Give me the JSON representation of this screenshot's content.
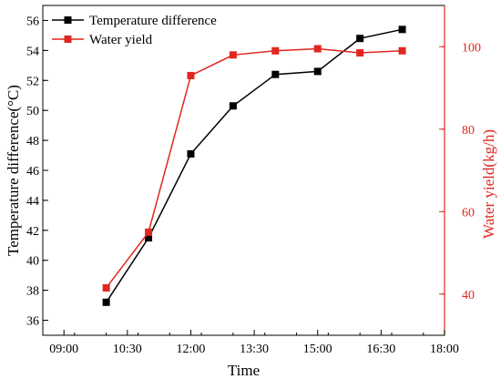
{
  "chart_data": {
    "type": "line",
    "xlabel": "Time",
    "x_tick_labels": [
      "09:00",
      "10:30",
      "12:00",
      "13:30",
      "15:00",
      "16:30",
      "18:00"
    ],
    "x_ticks_minutes": [
      540,
      630,
      720,
      810,
      900,
      990,
      1080
    ],
    "xlim_minutes": [
      510,
      1080
    ],
    "y_left": {
      "label": "Temperature difference(°C)",
      "lim": [
        35,
        57
      ],
      "ticks": [
        36,
        38,
        40,
        42,
        44,
        46,
        48,
        50,
        52,
        54,
        56
      ],
      "color": "#000000"
    },
    "y_right": {
      "label": "Water yield(kg/h)",
      "lim": [
        30,
        110
      ],
      "ticks": [
        40,
        60,
        80,
        100
      ],
      "color": "#e0271f"
    },
    "series": [
      {
        "name": "Temperature difference",
        "axis": "left",
        "color": "#000000",
        "marker": "square",
        "x_minutes": [
          600,
          660,
          720,
          780,
          840,
          900,
          960,
          1020
        ],
        "values": [
          37.2,
          41.5,
          47.1,
          50.3,
          52.4,
          52.6,
          54.8,
          55.4
        ]
      },
      {
        "name": "Water yield",
        "axis": "right",
        "color": "#e0271f",
        "marker": "square",
        "x_minutes": [
          600,
          660,
          720,
          780,
          840,
          900,
          960,
          1020
        ],
        "values": [
          41.5,
          55,
          93,
          98,
          99,
          99.5,
          98.5,
          99
        ]
      }
    ],
    "legend": {
      "position": "top-left",
      "entries": [
        "Temperature difference",
        "Water yield"
      ]
    },
    "grid": false
  }
}
